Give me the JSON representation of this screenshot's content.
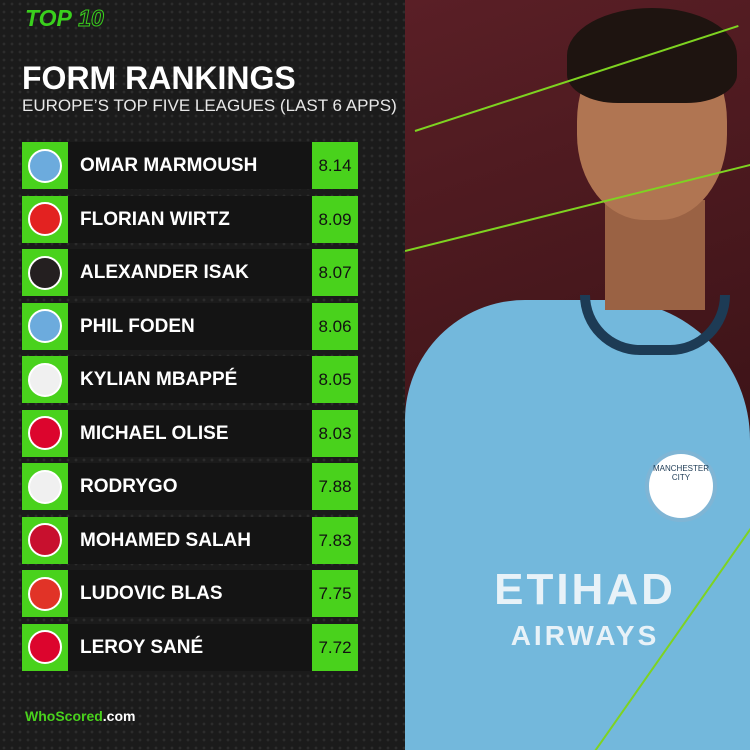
{
  "header": {
    "top": "TOP",
    "ten": "10",
    "title": "FORM RANKINGS",
    "subtitle": "EUROPE’S TOP FIVE LEAGUES  (LAST 6 APPS)"
  },
  "rows": [
    {
      "name": "OMAR MARMOUSH",
      "rating": "8.14",
      "club_icon": "manchester-city-crest",
      "color": "#6cabdd"
    },
    {
      "name": "FLORIAN WIRTZ",
      "rating": "8.09",
      "club_icon": "bayer-leverkusen-crest",
      "color": "#e32221"
    },
    {
      "name": "ALEXANDER ISAK",
      "rating": "8.07",
      "club_icon": "newcastle-united-crest",
      "color": "#241f20"
    },
    {
      "name": "PHIL FODEN",
      "rating": "8.06",
      "club_icon": "manchester-city-crest",
      "color": "#6cabdd"
    },
    {
      "name": "KYLIAN MBAPPÉ",
      "rating": "8.05",
      "club_icon": "real-madrid-crest",
      "color": "#f0f0f0"
    },
    {
      "name": "MICHAEL OLISE",
      "rating": "8.03",
      "club_icon": "bayern-munich-crest",
      "color": "#dc052d"
    },
    {
      "name": "RODRYGO",
      "rating": "7.88",
      "club_icon": "real-madrid-crest",
      "color": "#f0f0f0"
    },
    {
      "name": "MOHAMED SALAH",
      "rating": "7.83",
      "club_icon": "liverpool-crest",
      "color": "#c8102e"
    },
    {
      "name": "LUDOVIC BLAS",
      "rating": "7.75",
      "club_icon": "stade-rennais-crest",
      "color": "#e13327"
    },
    {
      "name": "LEROY SANÉ",
      "rating": "7.72",
      "club_icon": "bayern-munich-crest",
      "color": "#dc052d"
    }
  ],
  "photo": {
    "sponsor": "ETIHAD",
    "sponsor2": "AIRWAYS",
    "crest": "MANCHESTER CITY"
  },
  "brand": {
    "name": "WhoScored",
    ".com": ".com"
  },
  "colors": {
    "accent": "#49d21c",
    "background": "#1b1b1b"
  }
}
